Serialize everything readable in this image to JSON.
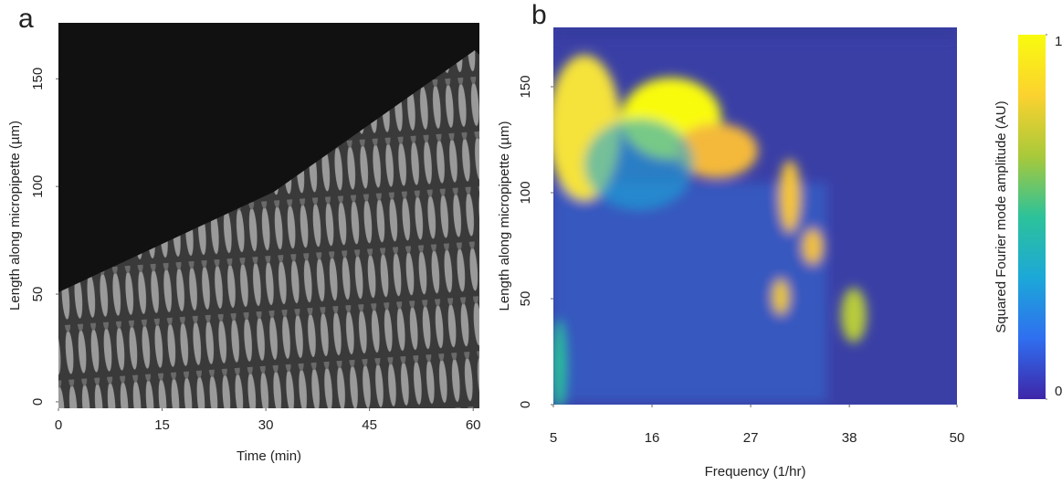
{
  "chart_data": [
    {
      "type": "heatmap",
      "panel_label": "a",
      "x_label": "Time (min)",
      "y_label": "Length along micropipette (µm)",
      "xlim": [
        0,
        60.9
      ],
      "xticks": [
        0,
        15,
        30,
        45,
        60
      ],
      "ylim": [
        -3,
        176
      ],
      "yticks": [
        0,
        50,
        100,
        150
      ]
    },
    {
      "type": "heatmap",
      "panel_label": "b",
      "x_label": "Frequency (1/hr)",
      "y_label": "Length along micropipette (µm)",
      "xlim": [
        5,
        50
      ],
      "xticks": [
        5,
        16,
        27,
        38,
        50
      ],
      "ylim": [
        0,
        178
      ],
      "yticks": [
        0,
        50,
        100,
        150
      ],
      "colorbar": {
        "label": "Squared Fourier mode amplitude (AU)",
        "lim": [
          0,
          1
        ],
        "ticks": [
          0,
          1
        ],
        "colors": [
          "#3e26a8",
          "#2f6ff0",
          "#1ca8d8",
          "#2cc29a",
          "#a9c93a",
          "#fbd22f",
          "#f9fb0e"
        ]
      }
    }
  ]
}
